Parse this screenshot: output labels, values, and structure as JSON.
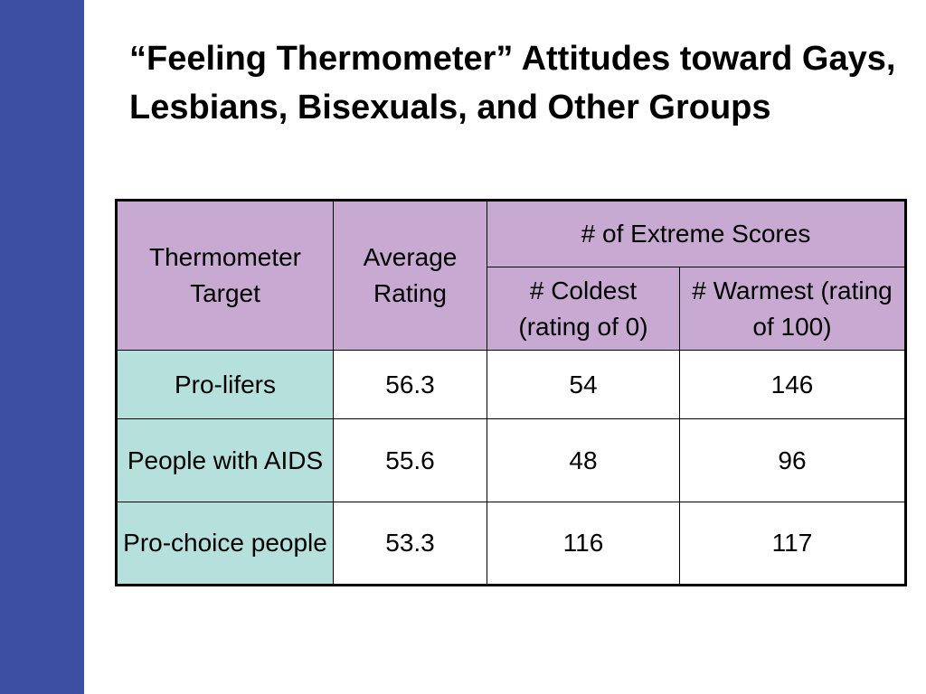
{
  "slide": {
    "title": "“Feeling Thermometer” Attitudes toward Gays, Lesbians, Bisexuals, and Other Groups"
  },
  "table": {
    "headers": {
      "target": "Thermometer Target",
      "average": "Average Rating",
      "extreme": "# of Extreme Scores",
      "coldest": "# Coldest (rating of 0)",
      "warmest": "# Warmest (rating of 100)"
    },
    "rows": [
      {
        "target": "Pro-lifers",
        "average": "56.3",
        "coldest": "54",
        "warmest": "146"
      },
      {
        "target": "People with AIDS",
        "average": "55.6",
        "coldest": "48",
        "warmest": "96"
      },
      {
        "target": "Pro-choice people",
        "average": "53.3",
        "coldest": "116",
        "warmest": "117"
      }
    ]
  },
  "colors": {
    "side_bar": "#3c4fa3",
    "header_fill": "#c8a9d1",
    "row_label_fill": "#b5e0dc"
  }
}
